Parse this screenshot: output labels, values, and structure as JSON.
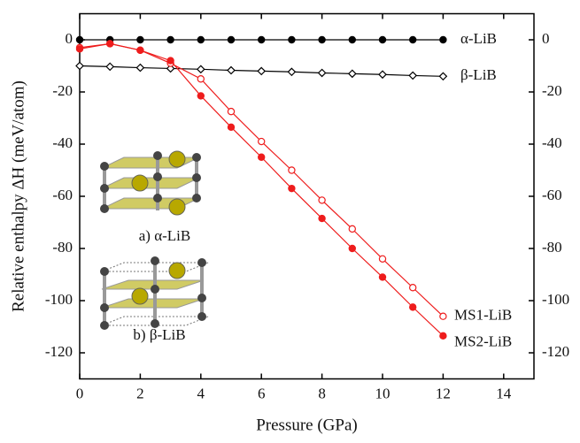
{
  "chart_data": {
    "type": "line",
    "xlabel": "Pressure (GPa)",
    "ylabel": "Relative enthalpy ΔH (meV/atom)",
    "x": [
      0,
      1,
      2,
      3,
      4,
      5,
      6,
      7,
      8,
      9,
      10,
      11,
      12
    ],
    "series": [
      {
        "name": "α-LiB",
        "color": "#000000",
        "marker": "filled-circle",
        "values": [
          0,
          0,
          0,
          0,
          0,
          0,
          0,
          0,
          0,
          0,
          0,
          0,
          0
        ]
      },
      {
        "name": "β-LiB",
        "color": "#000000",
        "marker": "open-diamond",
        "values": [
          -10,
          -10.3,
          -10.7,
          -11,
          -11.3,
          -11.7,
          -12,
          -12.3,
          -12.7,
          -13,
          -13.3,
          -13.7,
          -14
        ]
      },
      {
        "name": "MS1-LiB",
        "color": "#ee1c1c",
        "marker": "open-circle",
        "values": [
          -3,
          -1.5,
          -4,
          -9,
          -15,
          -27.5,
          -39,
          -50,
          -61.5,
          -72.5,
          -84,
          -95,
          -106
        ]
      },
      {
        "name": "MS2-LiB",
        "color": "#ee1c1c",
        "marker": "filled-circle",
        "values": [
          -3.5,
          -1.5,
          -4,
          -8,
          -21.5,
          -33.5,
          -45,
          -57,
          -68.5,
          -80,
          -91,
          -102.5,
          -113.5
        ]
      }
    ],
    "annotations": [
      "a) α-LiB",
      "b) β-LiB"
    ],
    "xlim": [
      0,
      15
    ],
    "xticks": [
      0,
      2,
      4,
      6,
      8,
      10,
      12,
      14
    ],
    "ylim": [
      -130,
      10
    ],
    "yticks": [
      0,
      -20,
      -40,
      -60,
      -80,
      -100,
      -120
    ],
    "grid": false
  }
}
